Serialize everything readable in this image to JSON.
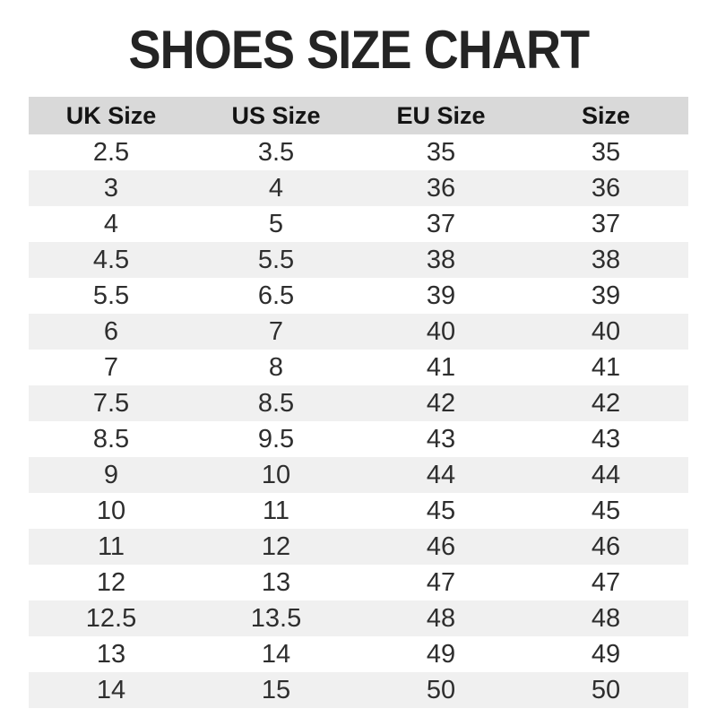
{
  "title": "SHOES SIZE CHART",
  "colors": {
    "header_band": "#d9d9d9",
    "alt_row_band": "#f0f0f0",
    "title_text": "#242424",
    "header_text": "#141414",
    "cell_text": "#2e2e2e",
    "background": "#ffffff"
  },
  "chart_data": {
    "type": "table",
    "title": "SHOES SIZE CHART",
    "columns": [
      "UK Size",
      "US Size",
      "EU Size",
      "Size"
    ],
    "rows": [
      [
        "2.5",
        "3.5",
        "35",
        "35"
      ],
      [
        "3",
        "4",
        "36",
        "36"
      ],
      [
        "4",
        "5",
        "37",
        "37"
      ],
      [
        "4.5",
        "5.5",
        "38",
        "38"
      ],
      [
        "5.5",
        "6.5",
        "39",
        "39"
      ],
      [
        "6",
        "7",
        "40",
        "40"
      ],
      [
        "7",
        "8",
        "41",
        "41"
      ],
      [
        "7.5",
        "8.5",
        "42",
        "42"
      ],
      [
        "8.5",
        "9.5",
        "43",
        "43"
      ],
      [
        "9",
        "10",
        "44",
        "44"
      ],
      [
        "10",
        "11",
        "45",
        "45"
      ],
      [
        "11",
        "12",
        "46",
        "46"
      ],
      [
        "12",
        "13",
        "47",
        "47"
      ],
      [
        "12.5",
        "13.5",
        "48",
        "48"
      ],
      [
        "13",
        "14",
        "49",
        "49"
      ],
      [
        "14",
        "15",
        "50",
        "50"
      ]
    ],
    "layout": {
      "alternating_rows": true,
      "shaded_rows": "even (2nd, 4th, ...)",
      "column_alignment": "center",
      "grid": false,
      "borders": false
    }
  }
}
